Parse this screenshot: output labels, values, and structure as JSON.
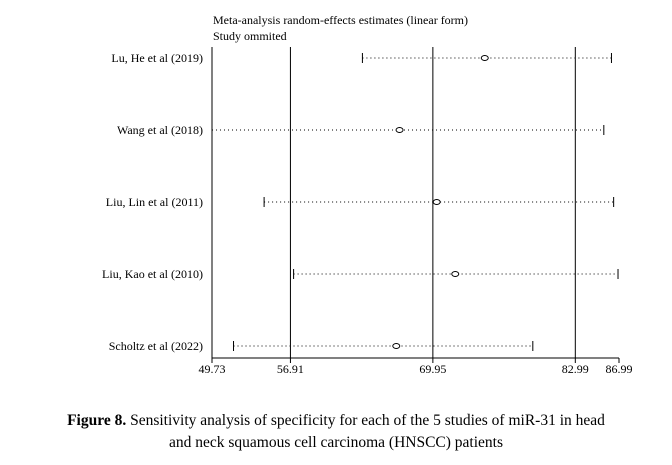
{
  "chart_data": {
    "type": "sensitivity-forest",
    "title": "Meta-analysis random-effects estimates (linear form)",
    "subtitle": "Study ommited",
    "x_ticks": [
      49.73,
      56.91,
      69.95,
      82.99,
      86.99
    ],
    "x_tick_labels": [
      "49.73",
      "56.91",
      "69.95",
      "82.99",
      "86.99"
    ],
    "xlim": [
      49.73,
      86.99
    ],
    "reference_lines": [
      56.91,
      69.95,
      82.99
    ],
    "studies": [
      {
        "name": "Lu, He et al (2019)",
        "estimate": 74.7,
        "lower": 63.5,
        "upper": 86.3
      },
      {
        "name": "Wang et al (2018)",
        "estimate": 66.9,
        "lower": 49.73,
        "upper": 85.6
      },
      {
        "name": "Liu, Lin et al (2011)",
        "estimate": 70.3,
        "lower": 54.5,
        "upper": 86.5
      },
      {
        "name": "Liu, Kao et al (2010)",
        "estimate": 72.0,
        "lower": 57.2,
        "upper": 86.9
      },
      {
        "name": "Scholtz et al (2022)",
        "estimate": 66.6,
        "lower": 51.7,
        "upper": 79.1
      }
    ]
  },
  "caption": {
    "label": "Figure 8.",
    "line1": "Sensitivity analysis of specificity for each of the 5 studies of miR-31 in head",
    "line2": "and neck squamous cell carcinoma (HNSCC) patients"
  }
}
